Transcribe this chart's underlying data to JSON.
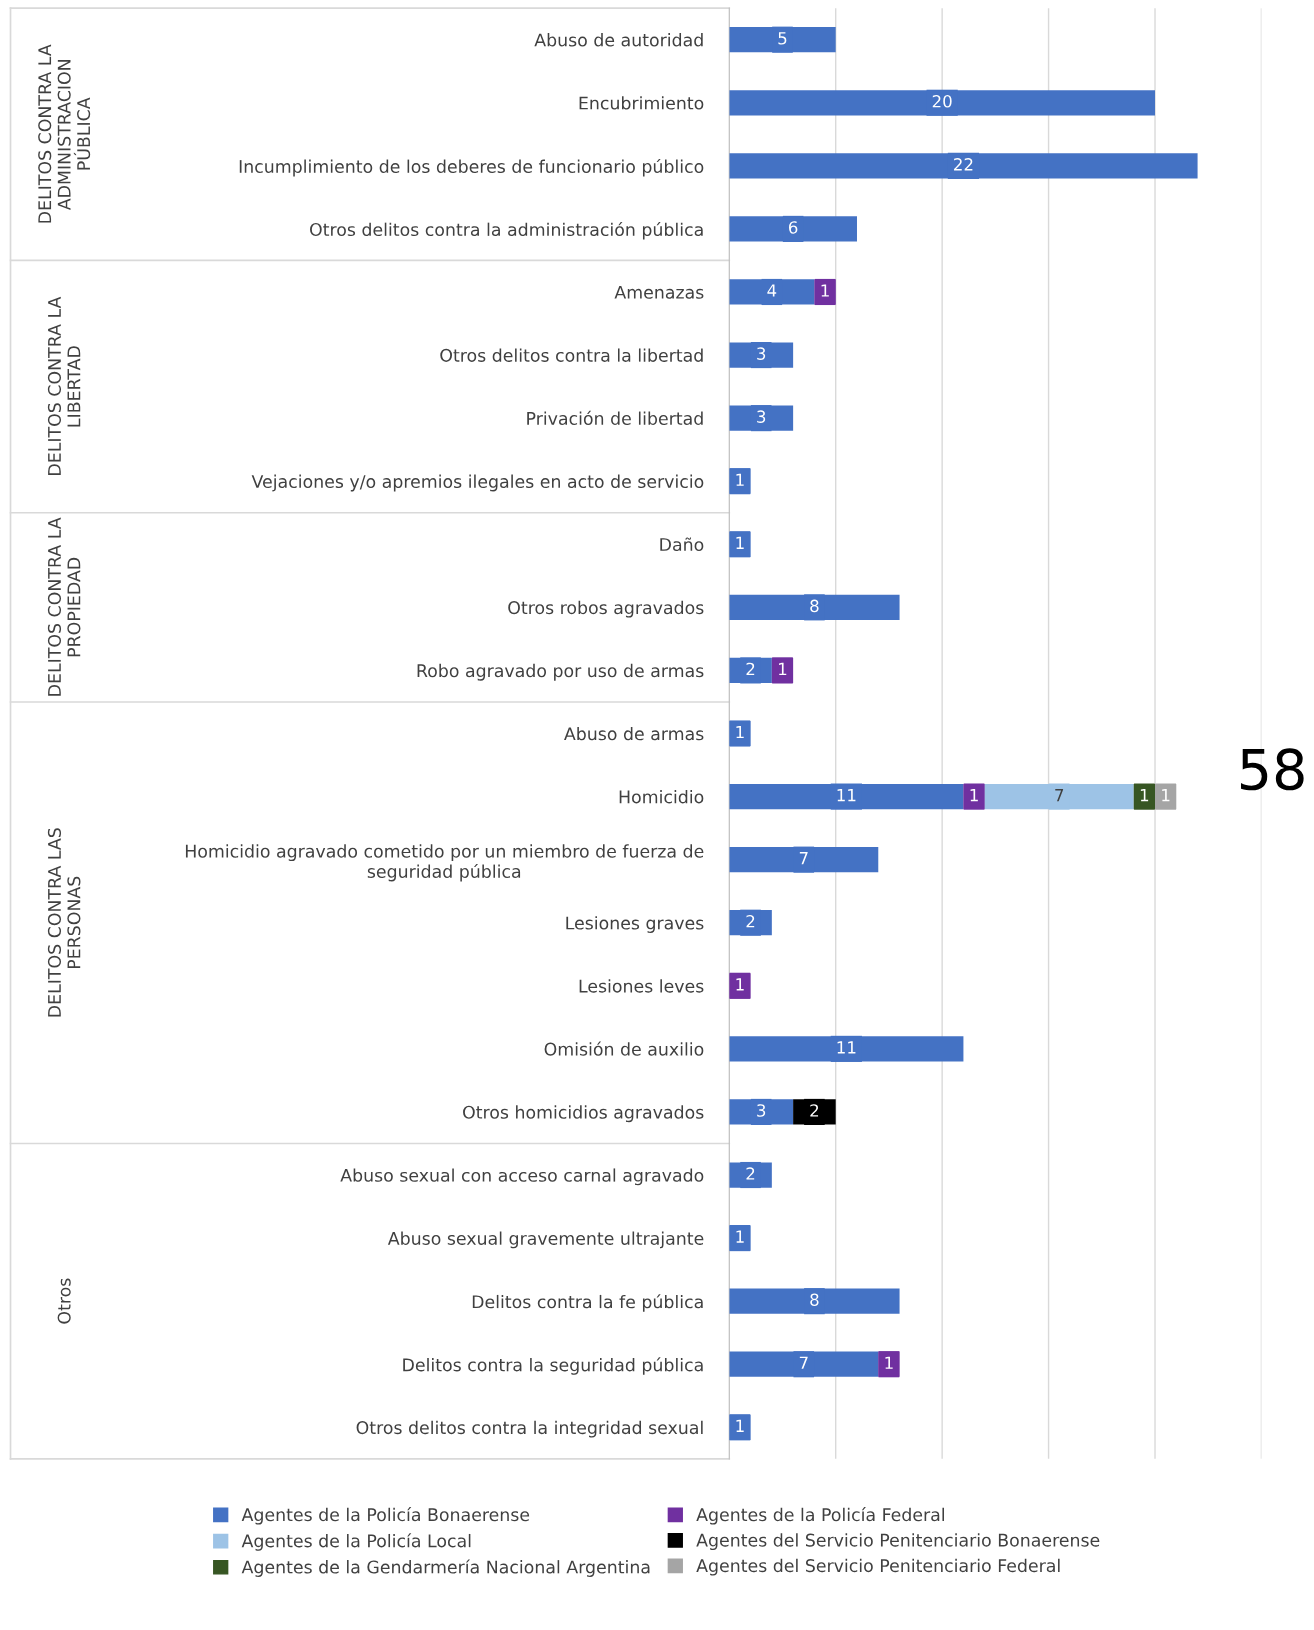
{
  "chart_data": {
    "type": "bar",
    "orientation": "horizontal",
    "stacked": true,
    "data_labels": true,
    "grid": "x",
    "legend": "bottom",
    "xlim": [
      0,
      25
    ],
    "xticks": [
      {
        "value": 0,
        "label": null
      },
      {
        "value": 5,
        "label": null
      },
      {
        "value": 10,
        "label": null
      },
      {
        "value": 15,
        "label": null
      },
      {
        "value": 20,
        "label": null
      },
      {
        "value": 25,
        "label": null
      }
    ],
    "categories": [
      "Abuso de autoridad",
      "Encubrimiento",
      "Incumplimiento de los deberes de funcionario público",
      "Otros delitos contra la administración pública",
      "Amenazas",
      "Otros delitos contra la libertad",
      "Privación de libertad",
      "Vejaciones y/o apremios ilegales en acto de servicio",
      "Daño",
      "Otros robos agravados",
      "Robo agravado por uso de armas",
      "Abuso de armas",
      "Homicidio",
      "Homicidio agravado cometido por un miembro de fuerza de seguridad pública",
      "Lesiones graves",
      "Lesiones leves",
      "Omisión de auxilio",
      "Otros homicidios agravados",
      "Abuso sexual con acceso carnal agravado",
      "Abuso sexual gravemente ultrajante",
      "Delitos contra la fe pública",
      "Delitos contra la seguridad pública",
      "Otros delitos contra la integridad sexual"
    ],
    "series": [
      {
        "name": "Agentes de la Policía Bonaerense",
        "color": "#4472c4",
        "values": [
          5,
          20,
          22,
          6,
          4,
          3,
          3,
          1,
          1,
          8,
          2,
          1,
          11,
          7,
          2,
          null,
          11,
          3,
          2,
          1,
          8,
          7,
          1
        ]
      },
      {
        "name": "Agentes de la Policía Federal",
        "color": "#7030a0",
        "values": [
          null,
          null,
          null,
          null,
          1,
          null,
          null,
          null,
          null,
          null,
          1,
          null,
          1,
          null,
          null,
          1,
          null,
          null,
          null,
          null,
          null,
          1,
          null
        ]
      },
      {
        "name": "Agentes de la Policía Local",
        "color": "#9dc3e6",
        "values": [
          null,
          null,
          null,
          null,
          null,
          null,
          null,
          null,
          null,
          null,
          null,
          null,
          7,
          null,
          null,
          null,
          null,
          null,
          null,
          null,
          null,
          null,
          null
        ]
      },
      {
        "name": "Agentes del Servicio Penitenciario Bonaerense",
        "color": "#000000",
        "values": [
          null,
          null,
          null,
          null,
          null,
          null,
          null,
          null,
          null,
          null,
          null,
          null,
          null,
          null,
          null,
          null,
          null,
          2,
          null,
          null,
          null,
          null,
          null
        ]
      },
      {
        "name": "Agentes de la Gendarmería Nacional Argentina",
        "color": "#375623",
        "values": [
          null,
          null,
          null,
          null,
          null,
          null,
          null,
          null,
          null,
          null,
          null,
          null,
          1,
          null,
          null,
          null,
          null,
          null,
          null,
          null,
          null,
          null,
          null
        ]
      },
      {
        "name": "Agentes del Servicio Penitenciario Federal",
        "color": "#a5a5a5",
        "values": [
          null,
          null,
          null,
          null,
          null,
          null,
          null,
          null,
          null,
          null,
          null,
          null,
          1,
          null,
          null,
          null,
          null,
          null,
          null,
          null,
          null,
          null,
          null
        ]
      }
    ],
    "annotations": [
      "DELITOS CONTRA LA ADMINISTRACION PÚBLICA",
      "DELITOS CONTRA LA LIBERTAD",
      "DELITOS CONTRA LA PROPIEDAD",
      "DELITOS CONTRA LAS PERSONAS",
      "Otros",
      "58"
    ]
  }
}
